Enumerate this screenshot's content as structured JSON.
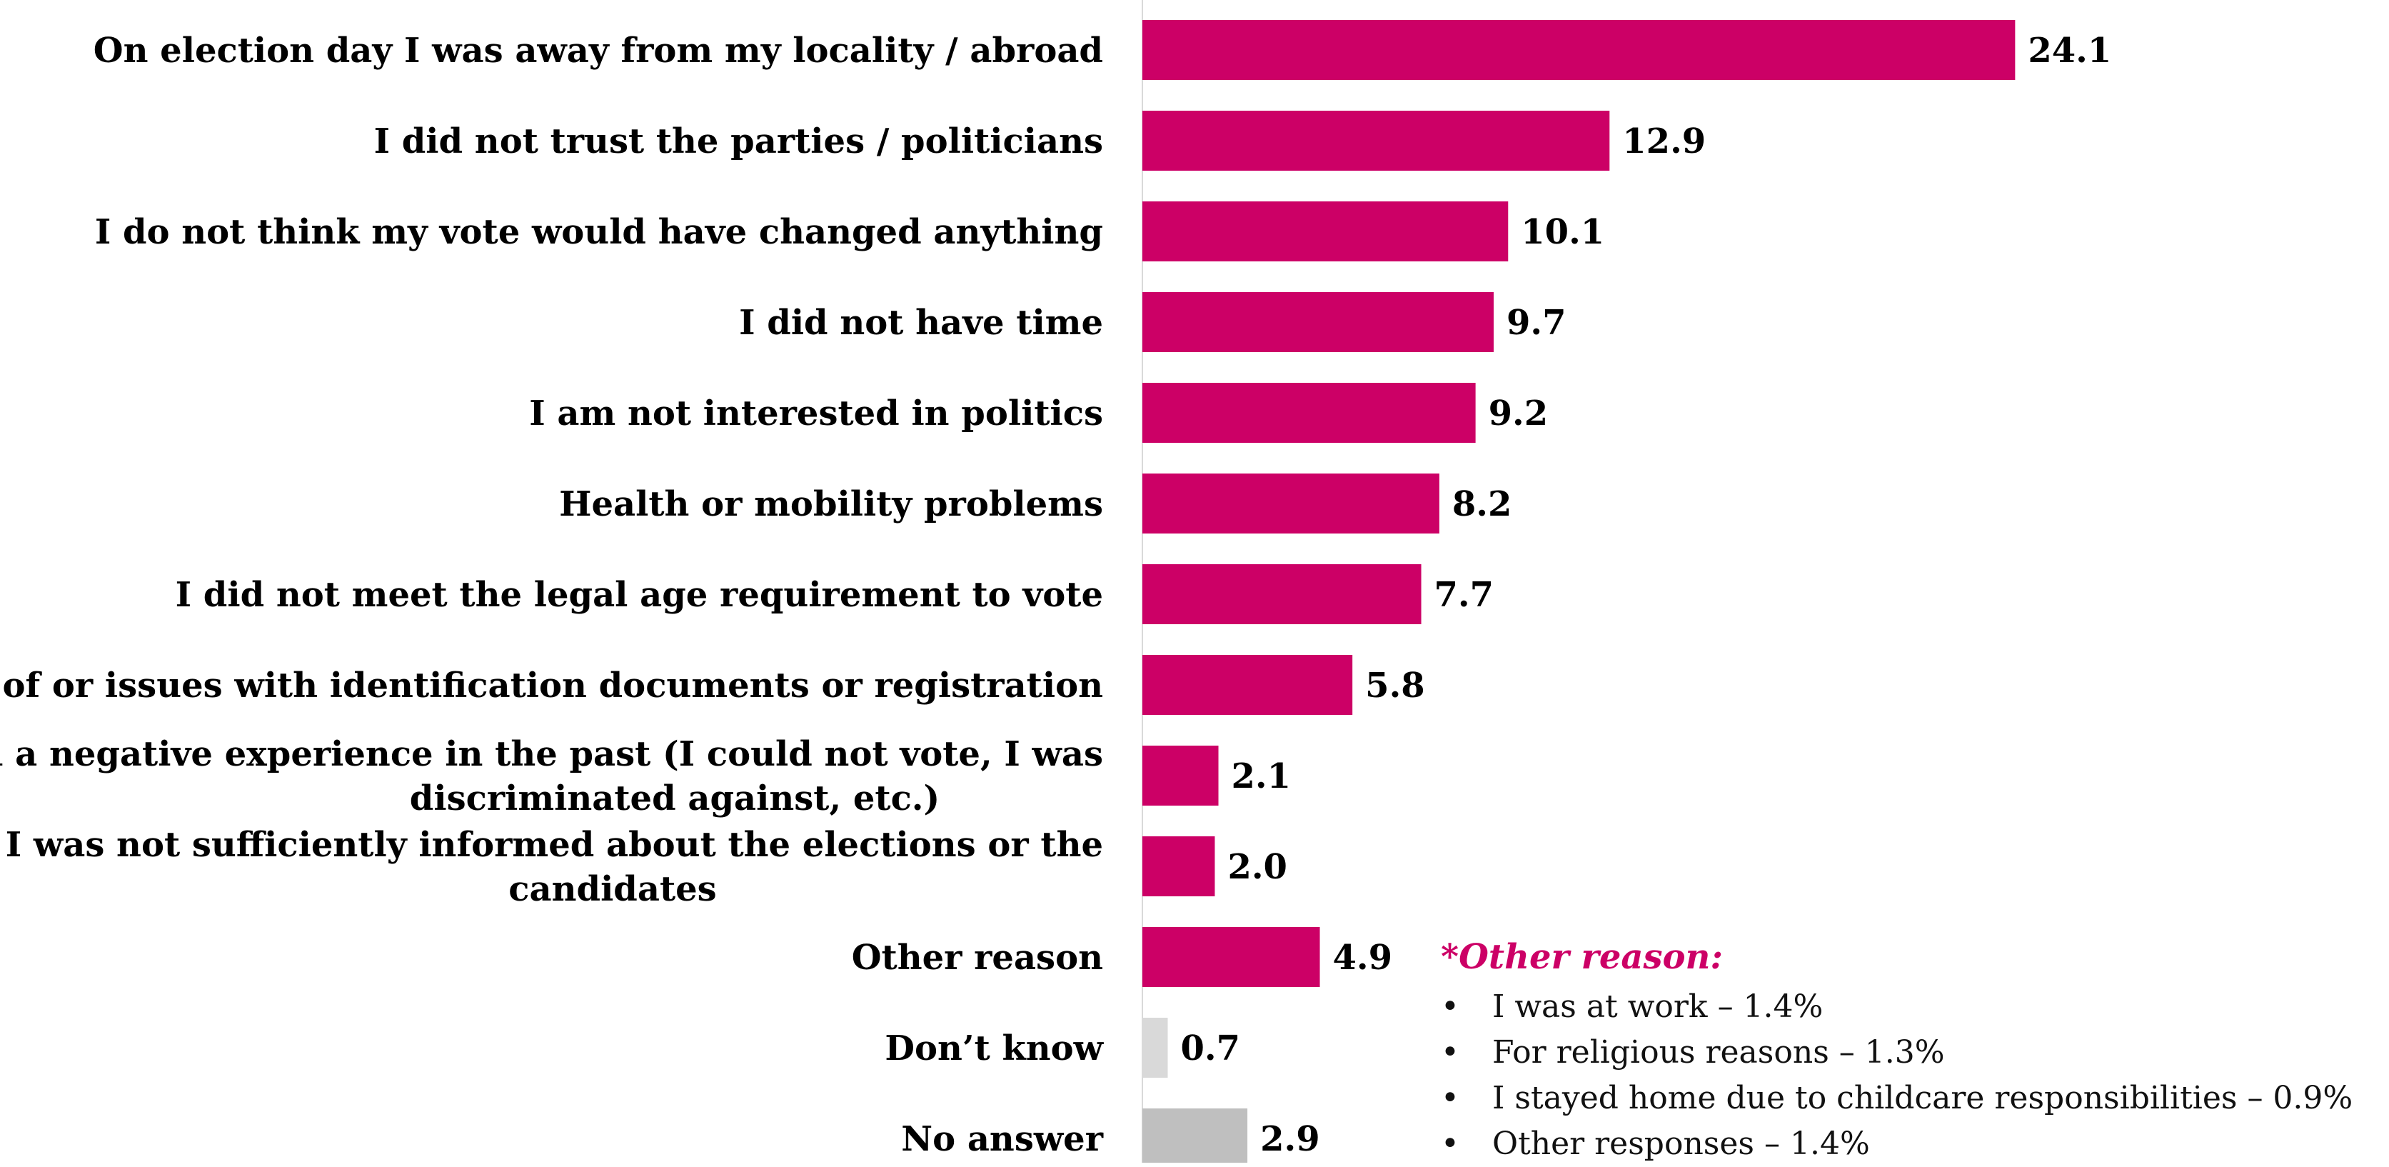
{
  "chart_data": {
    "type": "bar",
    "orientation": "horizontal",
    "categories": [
      "On election day I was away from my locality / abroad",
      "I did not trust the parties / politicians",
      "I do not think my vote would have changed anything",
      "I did not have time",
      "I am not interested in politics",
      "Health or mobility problems",
      "I did not meet the legal age requirement to vote",
      "Lack of or issues with identification documents or registration",
      "I had a negative experience in the past (I could not vote, I was discriminated against, etc.)",
      "I was not sufficiently informed about the elections or the candidates",
      "Other reason",
      "Don’t know",
      "No answer"
    ],
    "label_lines": [
      [
        "On election day I was away from my locality / abroad"
      ],
      [
        "I did not trust the parties / politicians"
      ],
      [
        "I do not think my vote would have changed anything"
      ],
      [
        "I did not have time"
      ],
      [
        "I am not interested in politics"
      ],
      [
        "Health or mobility problems"
      ],
      [
        "I did not meet the legal age requirement to vote"
      ],
      [
        "Lack of or issues with identification documents or registration"
      ],
      [
        "I had a negative experience in the past (I could not vote, I was",
        "discriminated against, etc.)"
      ],
      [
        "I was not sufficiently informed about the elections or the",
        "candidates"
      ],
      [
        "Other reason"
      ],
      [
        "Don’t know"
      ],
      [
        "No answer"
      ]
    ],
    "values": [
      24.1,
      12.9,
      10.1,
      9.7,
      9.2,
      8.2,
      7.7,
      5.8,
      2.1,
      2.0,
      4.9,
      0.7,
      2.9
    ],
    "value_labels": [
      "24.1",
      "12.9",
      "10.1",
      "9.7",
      "9.2",
      "8.2",
      "7.7",
      "5.8",
      "2.1",
      "2.0",
      "4.9",
      "0.7",
      "2.9"
    ],
    "bar_colors": [
      "#cc0066",
      "#cc0066",
      "#cc0066",
      "#cc0066",
      "#cc0066",
      "#cc0066",
      "#cc0066",
      "#cc0066",
      "#cc0066",
      "#cc0066",
      "#cc0066",
      "#d9d9d9",
      "#bfbfbf"
    ],
    "xlim": [
      0,
      25
    ],
    "title": "",
    "xlabel": "",
    "ylabel": "",
    "grid": false,
    "legend": "none",
    "data_labels": true
  },
  "note": {
    "title": "*Other reason:",
    "title_color": "#cc0066",
    "bullet": "•",
    "items": [
      "I was at work – 1.4%",
      "For religious reasons – 1.3%",
      "I stayed home due to childcare responsibilities – 0.9%",
      "Other responses – 1.4%"
    ]
  },
  "colors": {
    "accent": "#cc0066",
    "axis": "#d9d9d9"
  }
}
